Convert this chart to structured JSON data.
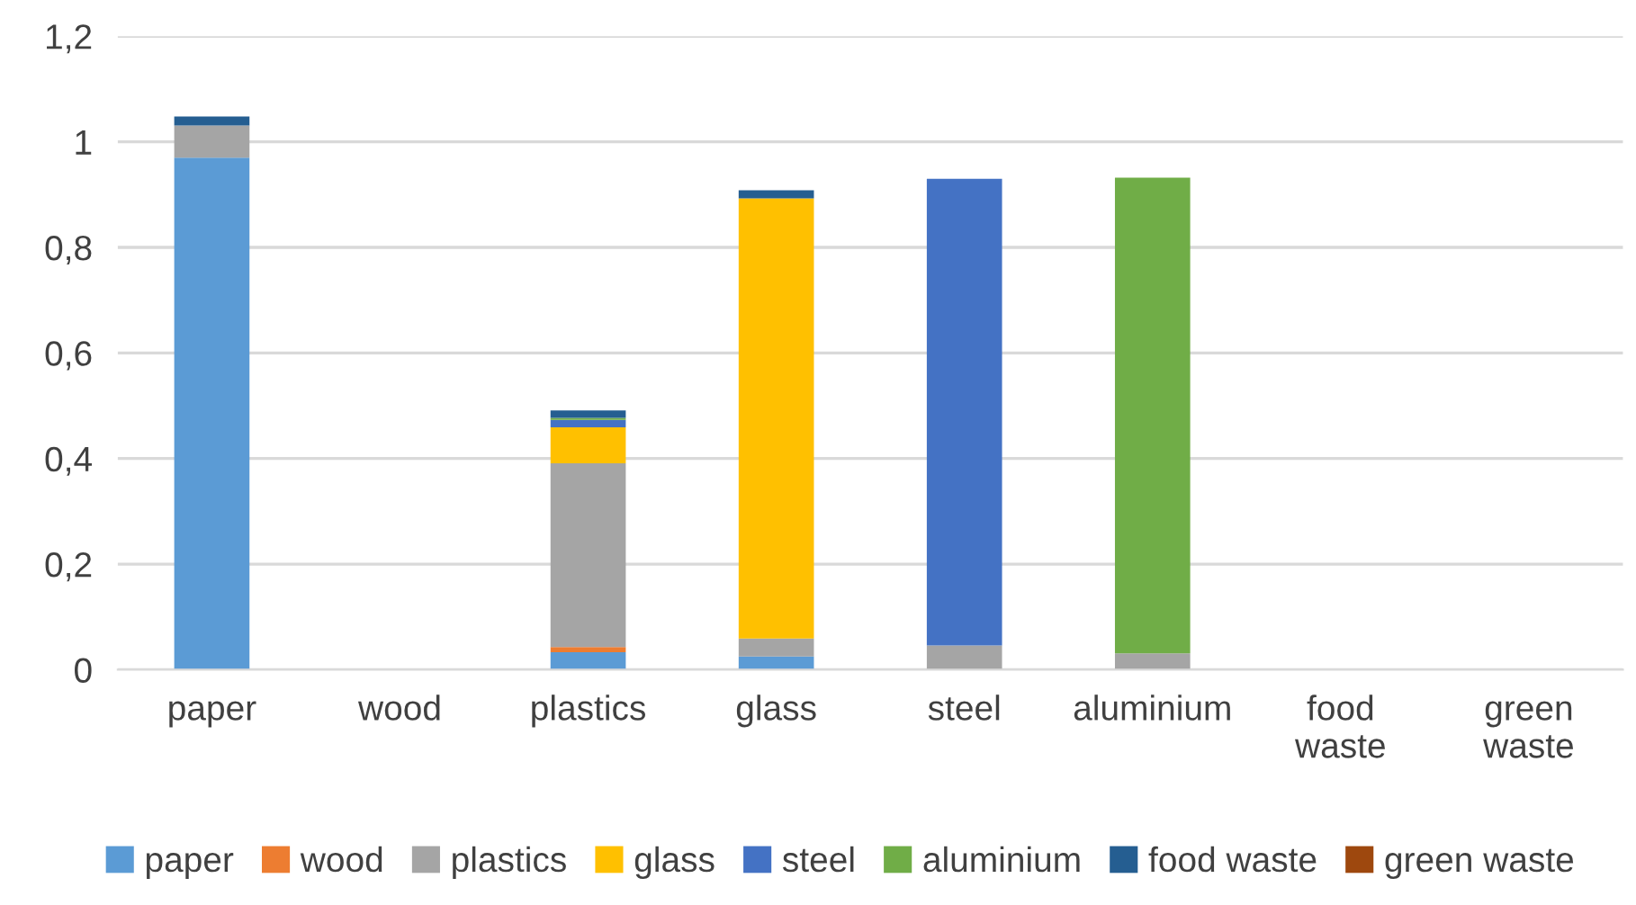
{
  "chart_data": {
    "type": "bar",
    "stacked": true,
    "categories": [
      "paper",
      "wood",
      "plastics",
      "glass",
      "steel",
      "aluminium",
      "food\nwaste",
      "green\nwaste"
    ],
    "series": [
      {
        "name": "paper",
        "color": "#5b9bd5",
        "values": [
          0.97,
          0,
          0.033,
          0.025,
          0,
          0,
          0,
          0
        ]
      },
      {
        "name": "wood",
        "color": "#ed7d31",
        "values": [
          0,
          null,
          0.01,
          0,
          0,
          0,
          0,
          0
        ]
      },
      {
        "name": "plastics",
        "color": "#a5a5a5",
        "values": [
          0.061,
          0,
          0.348,
          0.034,
          0.046,
          0.031,
          null,
          0
        ]
      },
      {
        "name": "glass",
        "color": "#ffc000",
        "values": [
          0,
          0,
          0.068,
          0.834,
          0,
          0,
          0,
          0
        ]
      },
      {
        "name": "steel",
        "color": "#4472c4",
        "values": [
          0,
          0,
          0.014,
          0,
          0.884,
          0,
          0,
          0
        ]
      },
      {
        "name": "aluminium",
        "color": "#70ad47",
        "values": [
          0,
          0,
          0.004,
          0,
          0,
          0.901,
          0,
          0
        ]
      },
      {
        "name": "food waste",
        "color": "#255e91",
        "values": [
          0.017,
          0,
          0.014,
          0.015,
          0,
          0,
          0,
          0
        ]
      },
      {
        "name": "green waste",
        "color": "#9e480e",
        "values": [
          0,
          0,
          0,
          0,
          0,
          0,
          0,
          null
        ]
      }
    ],
    "ylim": [
      0,
      1.2
    ],
    "yticks": [
      0,
      {
        "value": 0.2,
        "label": "0,2"
      },
      {
        "value": 0.4,
        "label": "0,4"
      },
      {
        "value": 0.6,
        "label": "0,6"
      },
      {
        "value": 0.8,
        "label": "0,8"
      },
      1,
      {
        "value": 1.2,
        "label": "1,2"
      }
    ],
    "grid": "y",
    "legend": "bottom"
  }
}
